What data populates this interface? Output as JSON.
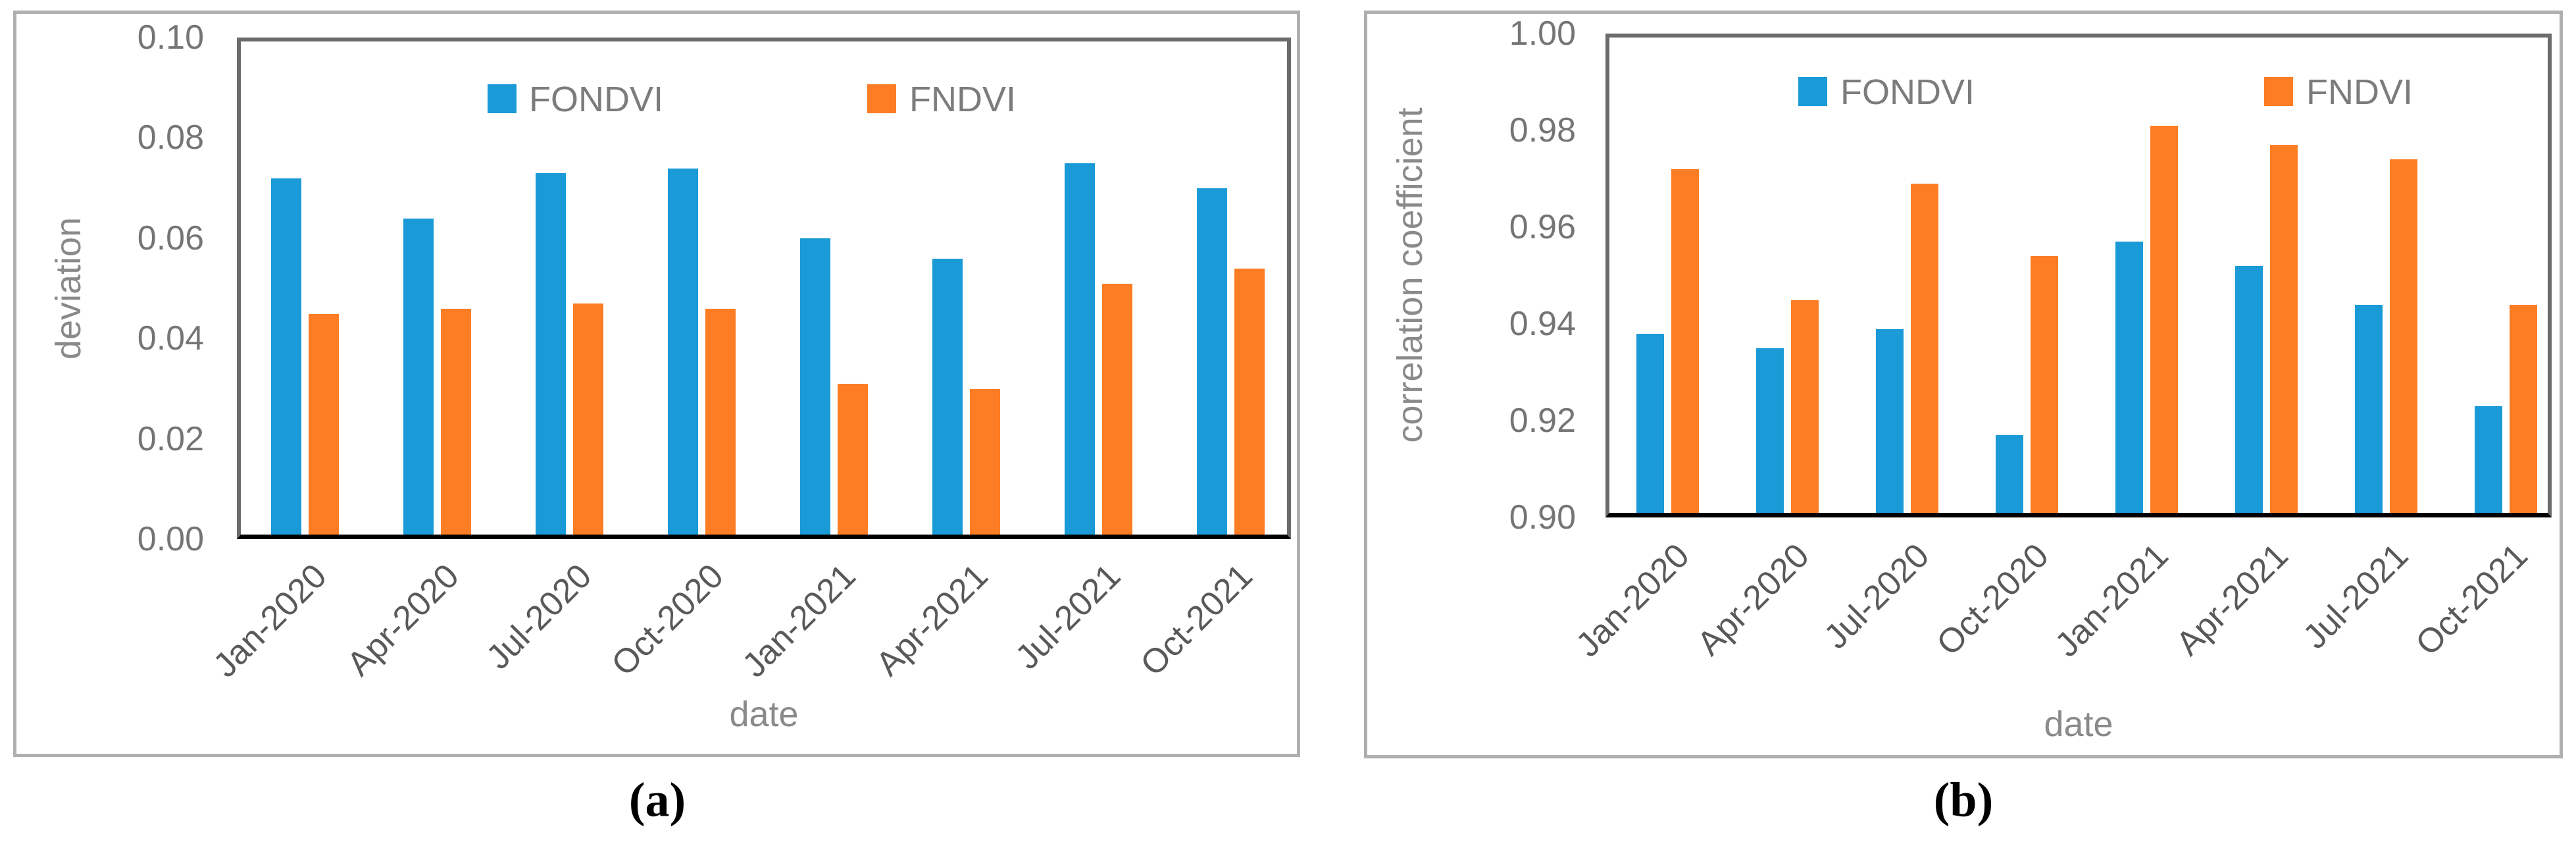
{
  "figure": {
    "captions": {
      "a": "(a)",
      "b": "(b)"
    },
    "colors": {
      "fondvi_blue": "#1A9AD6",
      "fndvi_orange": "#FC7D23",
      "panel_border": "#AFAFAF",
      "plot_border": "#6B6B6B",
      "axis_line": "#000000"
    },
    "panel_a": {
      "y_axis_title": "deviation",
      "x_axis_title": "date",
      "y_ticks": [
        "0.10",
        "0.08",
        "0.06",
        "0.04",
        "0.02",
        "0.00"
      ],
      "legend": {
        "fondvi_label": "FONDVI",
        "fndvi_label": "FNDVI"
      }
    },
    "panel_b": {
      "y_axis_title": "correlation coefficient",
      "x_axis_title": "date",
      "y_ticks": [
        "1.00",
        "0.98",
        "0.96",
        "0.94",
        "0.92",
        "0.90"
      ],
      "legend": {
        "fondvi_label": "FONDVI",
        "fndvi_label": "FNDVI"
      }
    }
  },
  "chart_data": [
    {
      "type": "bar",
      "panel": "a",
      "title": "",
      "categories": [
        "Jan-2020",
        "Apr-2020",
        "Jul-2020",
        "Oct-2020",
        "Jan-2021",
        "Apr-2021",
        "Jul-2021",
        "Oct-2021"
      ],
      "series": [
        {
          "name": "FONDVI",
          "color": "#1A9AD6",
          "values": [
            0.071,
            0.063,
            0.072,
            0.073,
            0.059,
            0.055,
            0.074,
            0.069
          ]
        },
        {
          "name": "FNDVI",
          "color": "#FC7D23",
          "values": [
            0.044,
            0.045,
            0.046,
            0.045,
            0.03,
            0.029,
            0.05,
            0.053
          ]
        }
      ],
      "xlabel": "date",
      "ylabel": "deviation",
      "ylim": [
        0.0,
        0.1
      ],
      "ytick_step": 0.02,
      "grid": false,
      "legend_position": "top-center"
    },
    {
      "type": "bar",
      "panel": "b",
      "title": "",
      "categories": [
        "Jan-2020",
        "Apr-2020",
        "Jul-2020",
        "Oct-2020",
        "Jan-2021",
        "Apr-2021",
        "Jul-2021",
        "Oct-2021"
      ],
      "series": [
        {
          "name": "FONDVI",
          "color": "#1A9AD6",
          "values": [
            0.937,
            0.934,
            0.938,
            0.916,
            0.956,
            0.951,
            0.943,
            0.922
          ]
        },
        {
          "name": "FNDVI",
          "color": "#FC7D23",
          "values": [
            0.971,
            0.944,
            0.968,
            0.953,
            0.98,
            0.976,
            0.973,
            0.943
          ]
        }
      ],
      "xlabel": "date",
      "ylabel": "correlation coefficient",
      "ylim": [
        0.9,
        1.0
      ],
      "ytick_step": 0.02,
      "grid": false,
      "legend_position": "top-center"
    }
  ]
}
